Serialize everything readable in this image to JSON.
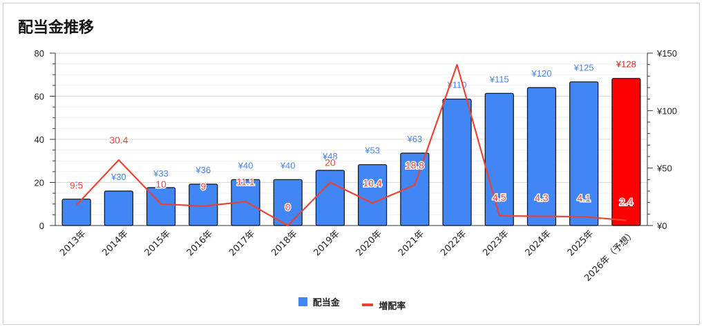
{
  "title": "配当金推移",
  "chart_data": {
    "type": "bar+line",
    "title": "配当金推移",
    "categories": [
      "2013年",
      "2014年",
      "2015年",
      "2016年",
      "2017年",
      "2018年",
      "2019年",
      "2020年",
      "2021年",
      "2022年",
      "2023年",
      "2024年",
      "2025年",
      "2026年（予想）"
    ],
    "series": [
      {
        "name": "配当金",
        "type": "bar",
        "axis": "right",
        "values": [
          23,
          30,
          33,
          36,
          40,
          40,
          48,
          53,
          63,
          110,
          115,
          120,
          125,
          128
        ],
        "labels": [
          "¥23",
          "¥30",
          "¥33",
          "¥36",
          "¥40",
          "¥40",
          "¥48",
          "¥53",
          "¥63",
          "¥110",
          "¥115",
          "¥120",
          "¥125",
          "¥128"
        ],
        "color": "#4285f4",
        "highlight_index": 13,
        "highlight_color": "#ff0000"
      },
      {
        "name": "増配率",
        "type": "line",
        "axis": "left",
        "values": [
          9.5,
          30.4,
          10,
          9,
          11.1,
          0,
          20,
          10.4,
          18.8,
          74.6,
          4.5,
          4.3,
          4.1,
          2.4
        ],
        "labels": [
          "9.5",
          "30.4",
          "10",
          "9",
          "11.1",
          "0",
          "20",
          "10.4",
          "18.8",
          "",
          "4.5",
          "4.3",
          "4.1",
          "2.4"
        ],
        "color": "#ea4335"
      }
    ],
    "left_axis": {
      "ylim": [
        0,
        80
      ],
      "ticks": [
        "0",
        "20",
        "40",
        "60",
        "80"
      ]
    },
    "right_axis": {
      "ylim": [
        0,
        150
      ],
      "ticks": [
        "¥0",
        "¥50",
        "¥100",
        "¥150"
      ]
    },
    "grid": true,
    "legend": "bottom"
  }
}
